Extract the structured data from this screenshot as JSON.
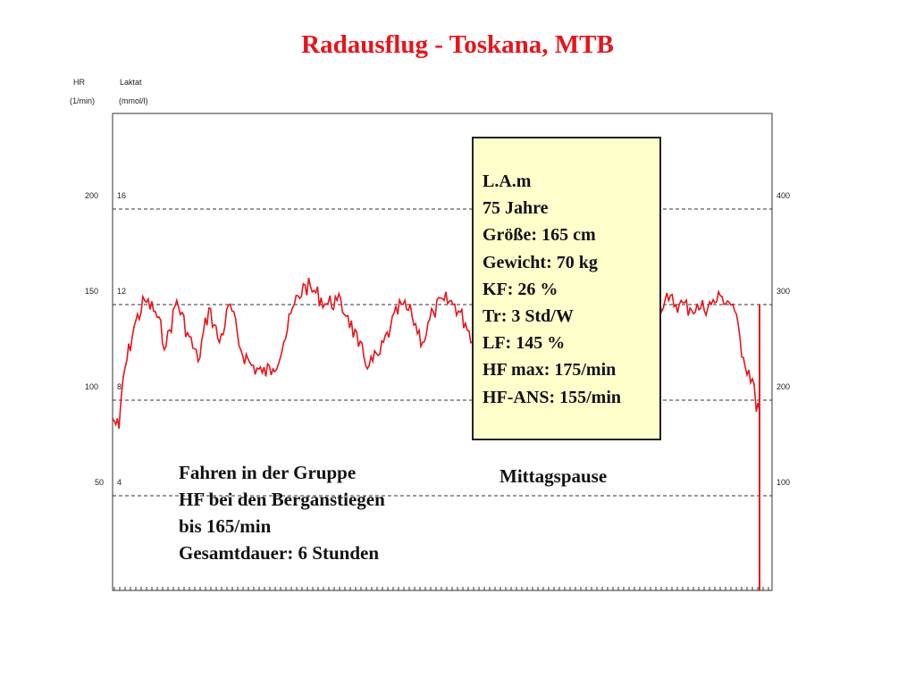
{
  "title": "Radausflug - Toskana, MTB",
  "colors": {
    "title": "#e8141b",
    "series": "#e8141b",
    "info_bg": "#ffffcc",
    "grid": "#333333"
  },
  "chart_data": {
    "type": "line",
    "title": "Radausflug - Toskana, MTB",
    "axis_left_hr": {
      "label": "HR",
      "unit": "(1/min)",
      "ticks": [
        "200",
        "150",
        "100",
        "50"
      ],
      "tick_values": [
        200,
        150,
        100,
        50
      ],
      "range": [
        0,
        250
      ]
    },
    "axis_left_lactate": {
      "label": "Laktat",
      "unit": "(mmol/l)",
      "ticks": [
        "16",
        "12",
        "8",
        "4"
      ]
    },
    "axis_right": {
      "ticks": [
        "400",
        "300",
        "200",
        "100"
      ]
    },
    "grid": "dashed horizontal at 50, 100, 150, 200",
    "series": [
      {
        "color": "#e8141b",
        "x": [
          0,
          0.06,
          0.1,
          0.2,
          0.3,
          0.4,
          0.5,
          0.6,
          0.7,
          0.8,
          0.9,
          1.0,
          1.1,
          1.2,
          1.3,
          1.4,
          1.5,
          1.6,
          1.7,
          1.8,
          1.9,
          2.0,
          2.1,
          2.2,
          2.3,
          2.4,
          2.5,
          2.6,
          2.7,
          2.8,
          2.9,
          3.0,
          3.1,
          3.2,
          3.3,
          3.4,
          3.5,
          3.6,
          3.7,
          3.8,
          3.9,
          4.0,
          4.1,
          4.2,
          4.3,
          4.4,
          4.5,
          4.6,
          4.7,
          4.8,
          4.9,
          5.0,
          5.1,
          5.2,
          5.3,
          5.4,
          5.5,
          5.6,
          5.7,
          5.8,
          5.9,
          6.0,
          6.02,
          6.05
        ],
        "values": [
          90,
          85,
          112,
          138,
          152,
          146,
          128,
          152,
          135,
          120,
          148,
          130,
          150,
          126,
          118,
          114,
          116,
          130,
          150,
          160,
          156,
          150,
          152,
          144,
          128,
          118,
          124,
          138,
          150,
          144,
          130,
          146,
          152,
          150,
          140,
          128,
          150,
          156,
          150,
          146,
          150,
          152,
          154,
          150,
          148,
          146,
          150,
          154,
          152,
          148,
          146,
          150,
          150,
          152,
          150,
          148,
          148,
          150,
          154,
          150,
          122,
          108,
          94,
          94
        ]
      }
    ]
  },
  "info_box": {
    "lines": [
      "L.A.m",
      "75 Jahre",
      "Größe: 165 cm",
      "Gewicht: 70 kg",
      "KF: 26 %",
      "Tr: 3 Std/W",
      "LF: 145 %",
      "HF max: 175/min",
      "HF-ANS: 155/min"
    ]
  },
  "annotations": {
    "group": [
      "Fahren in der Gruppe",
      "HF bei den Berganstiegen",
      "bis 165/min",
      "Gesamtdauer: 6 Stunden"
    ],
    "lunch": "Mittagspause"
  }
}
